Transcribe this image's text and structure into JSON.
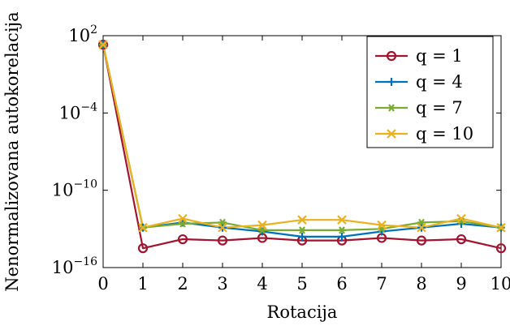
{
  "chart_data": {
    "type": "line",
    "xlabel": "Rotacija",
    "ylabel": "Nenormalizovana autokorelacija",
    "y_scale": "log",
    "xlim": [
      0,
      10
    ],
    "ylim_exponent": [
      -16,
      2
    ],
    "x_ticks": [
      0,
      1,
      2,
      3,
      4,
      5,
      6,
      7,
      8,
      9,
      10
    ],
    "y_ticks": [
      {
        "base": "10",
        "exp": "2",
        "value_exp": 2
      },
      {
        "base": "10",
        "exp": "−4",
        "value_exp": -4
      },
      {
        "base": "10",
        "exp": "−10",
        "value_exp": -10
      },
      {
        "base": "10",
        "exp": "−16",
        "value_exp": -16
      }
    ],
    "grid": false,
    "legend_position": "top-right",
    "x": [
      0,
      1,
      2,
      3,
      4,
      5,
      6,
      7,
      8,
      9,
      10
    ],
    "series": [
      {
        "name": "q = 1",
        "color": "#a2142f",
        "marker": "circle",
        "log10_values": [
          1.3,
          -14.5,
          -13.8,
          -13.9,
          -13.7,
          -13.9,
          -13.9,
          -13.7,
          -13.9,
          -13.8,
          -14.5
        ]
      },
      {
        "name": "q = 4",
        "color": "#0072bd",
        "marker": "plus",
        "log10_values": [
          1.3,
          -12.9,
          -12.5,
          -12.9,
          -13.2,
          -13.6,
          -13.6,
          -13.2,
          -12.9,
          -12.6,
          -12.9
        ]
      },
      {
        "name": "q = 7",
        "color": "#77ac30",
        "marker": "asterisk",
        "log10_values": [
          1.3,
          -12.9,
          -12.6,
          -12.5,
          -13.1,
          -13.1,
          -13.1,
          -13.0,
          -12.5,
          -12.4,
          -12.9
        ]
      },
      {
        "name": "q = 10",
        "color": "#edb120",
        "marker": "x",
        "log10_values": [
          1.3,
          -12.9,
          -12.2,
          -12.9,
          -12.7,
          -12.3,
          -12.3,
          -12.7,
          -12.9,
          -12.2,
          -12.9
        ]
      }
    ]
  }
}
